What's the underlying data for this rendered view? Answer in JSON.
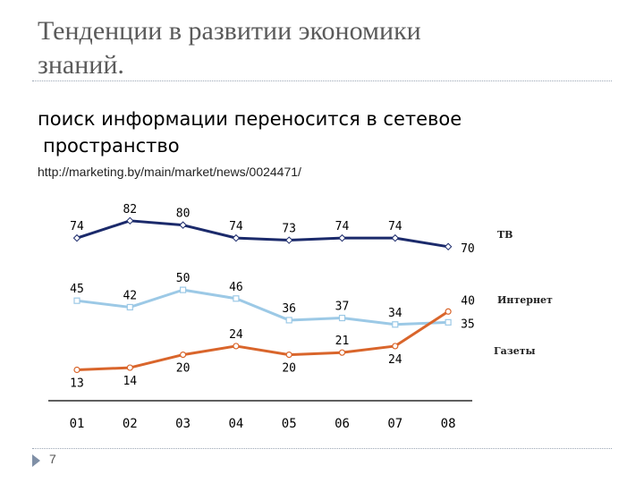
{
  "slide": {
    "title_line1": "Тенденции в развитии экономики",
    "title_line2": "знаний.",
    "subtitle_line1": "поиск информации  переносится в сетевое",
    "subtitle_line2": "пространство",
    "source": "http://marketing.by/main/market/news/0024471/",
    "page_number": "7"
  },
  "chart_data": {
    "type": "line",
    "title": "",
    "xlabel": "",
    "ylabel": "",
    "categories": [
      "01",
      "02",
      "03",
      "04",
      "05",
      "06",
      "07",
      "08"
    ],
    "ylim": [
      0,
      90
    ],
    "grid": false,
    "legend": "right, at end of each line",
    "series": [
      {
        "name": "ТВ",
        "color": "#1b2a6b",
        "values": [
          74,
          82,
          80,
          74,
          73,
          74,
          74,
          70
        ]
      },
      {
        "name": "Интернет",
        "color": "#9cc9e6",
        "values": [
          45,
          42,
          50,
          46,
          36,
          37,
          34,
          35
        ]
      },
      {
        "name": "Газеты",
        "color": "#d9652b",
        "values": [
          13,
          14,
          20,
          24,
          20,
          21,
          24,
          40
        ]
      }
    ]
  }
}
